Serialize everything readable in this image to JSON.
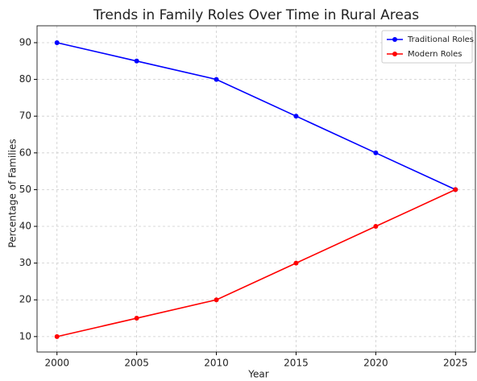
{
  "chart_data": {
    "type": "line",
    "title": "Trends in Family Roles Over Time in Rural Areas",
    "x_label": "Year",
    "y_label": "Percentage of Families",
    "x": [
      2000,
      2005,
      2010,
      2015,
      2020,
      2025
    ],
    "series": [
      {
        "name": "Traditional Roles",
        "color": "#0000ff",
        "values": [
          90,
          85,
          80,
          70,
          60,
          50
        ]
      },
      {
        "name": "Modern Roles",
        "color": "#ff0000",
        "values": [
          10,
          15,
          20,
          30,
          40,
          50
        ]
      }
    ],
    "xlim": [
      1998.75,
      2026.25
    ],
    "xticks": [
      2000,
      2005,
      2010,
      2015,
      2020,
      2025
    ],
    "ylim": [
      5.8,
      94.6
    ],
    "yticks": [
      10,
      20,
      30,
      40,
      50,
      60,
      70,
      80,
      90
    ],
    "grid": true,
    "legend": "upper right"
  }
}
